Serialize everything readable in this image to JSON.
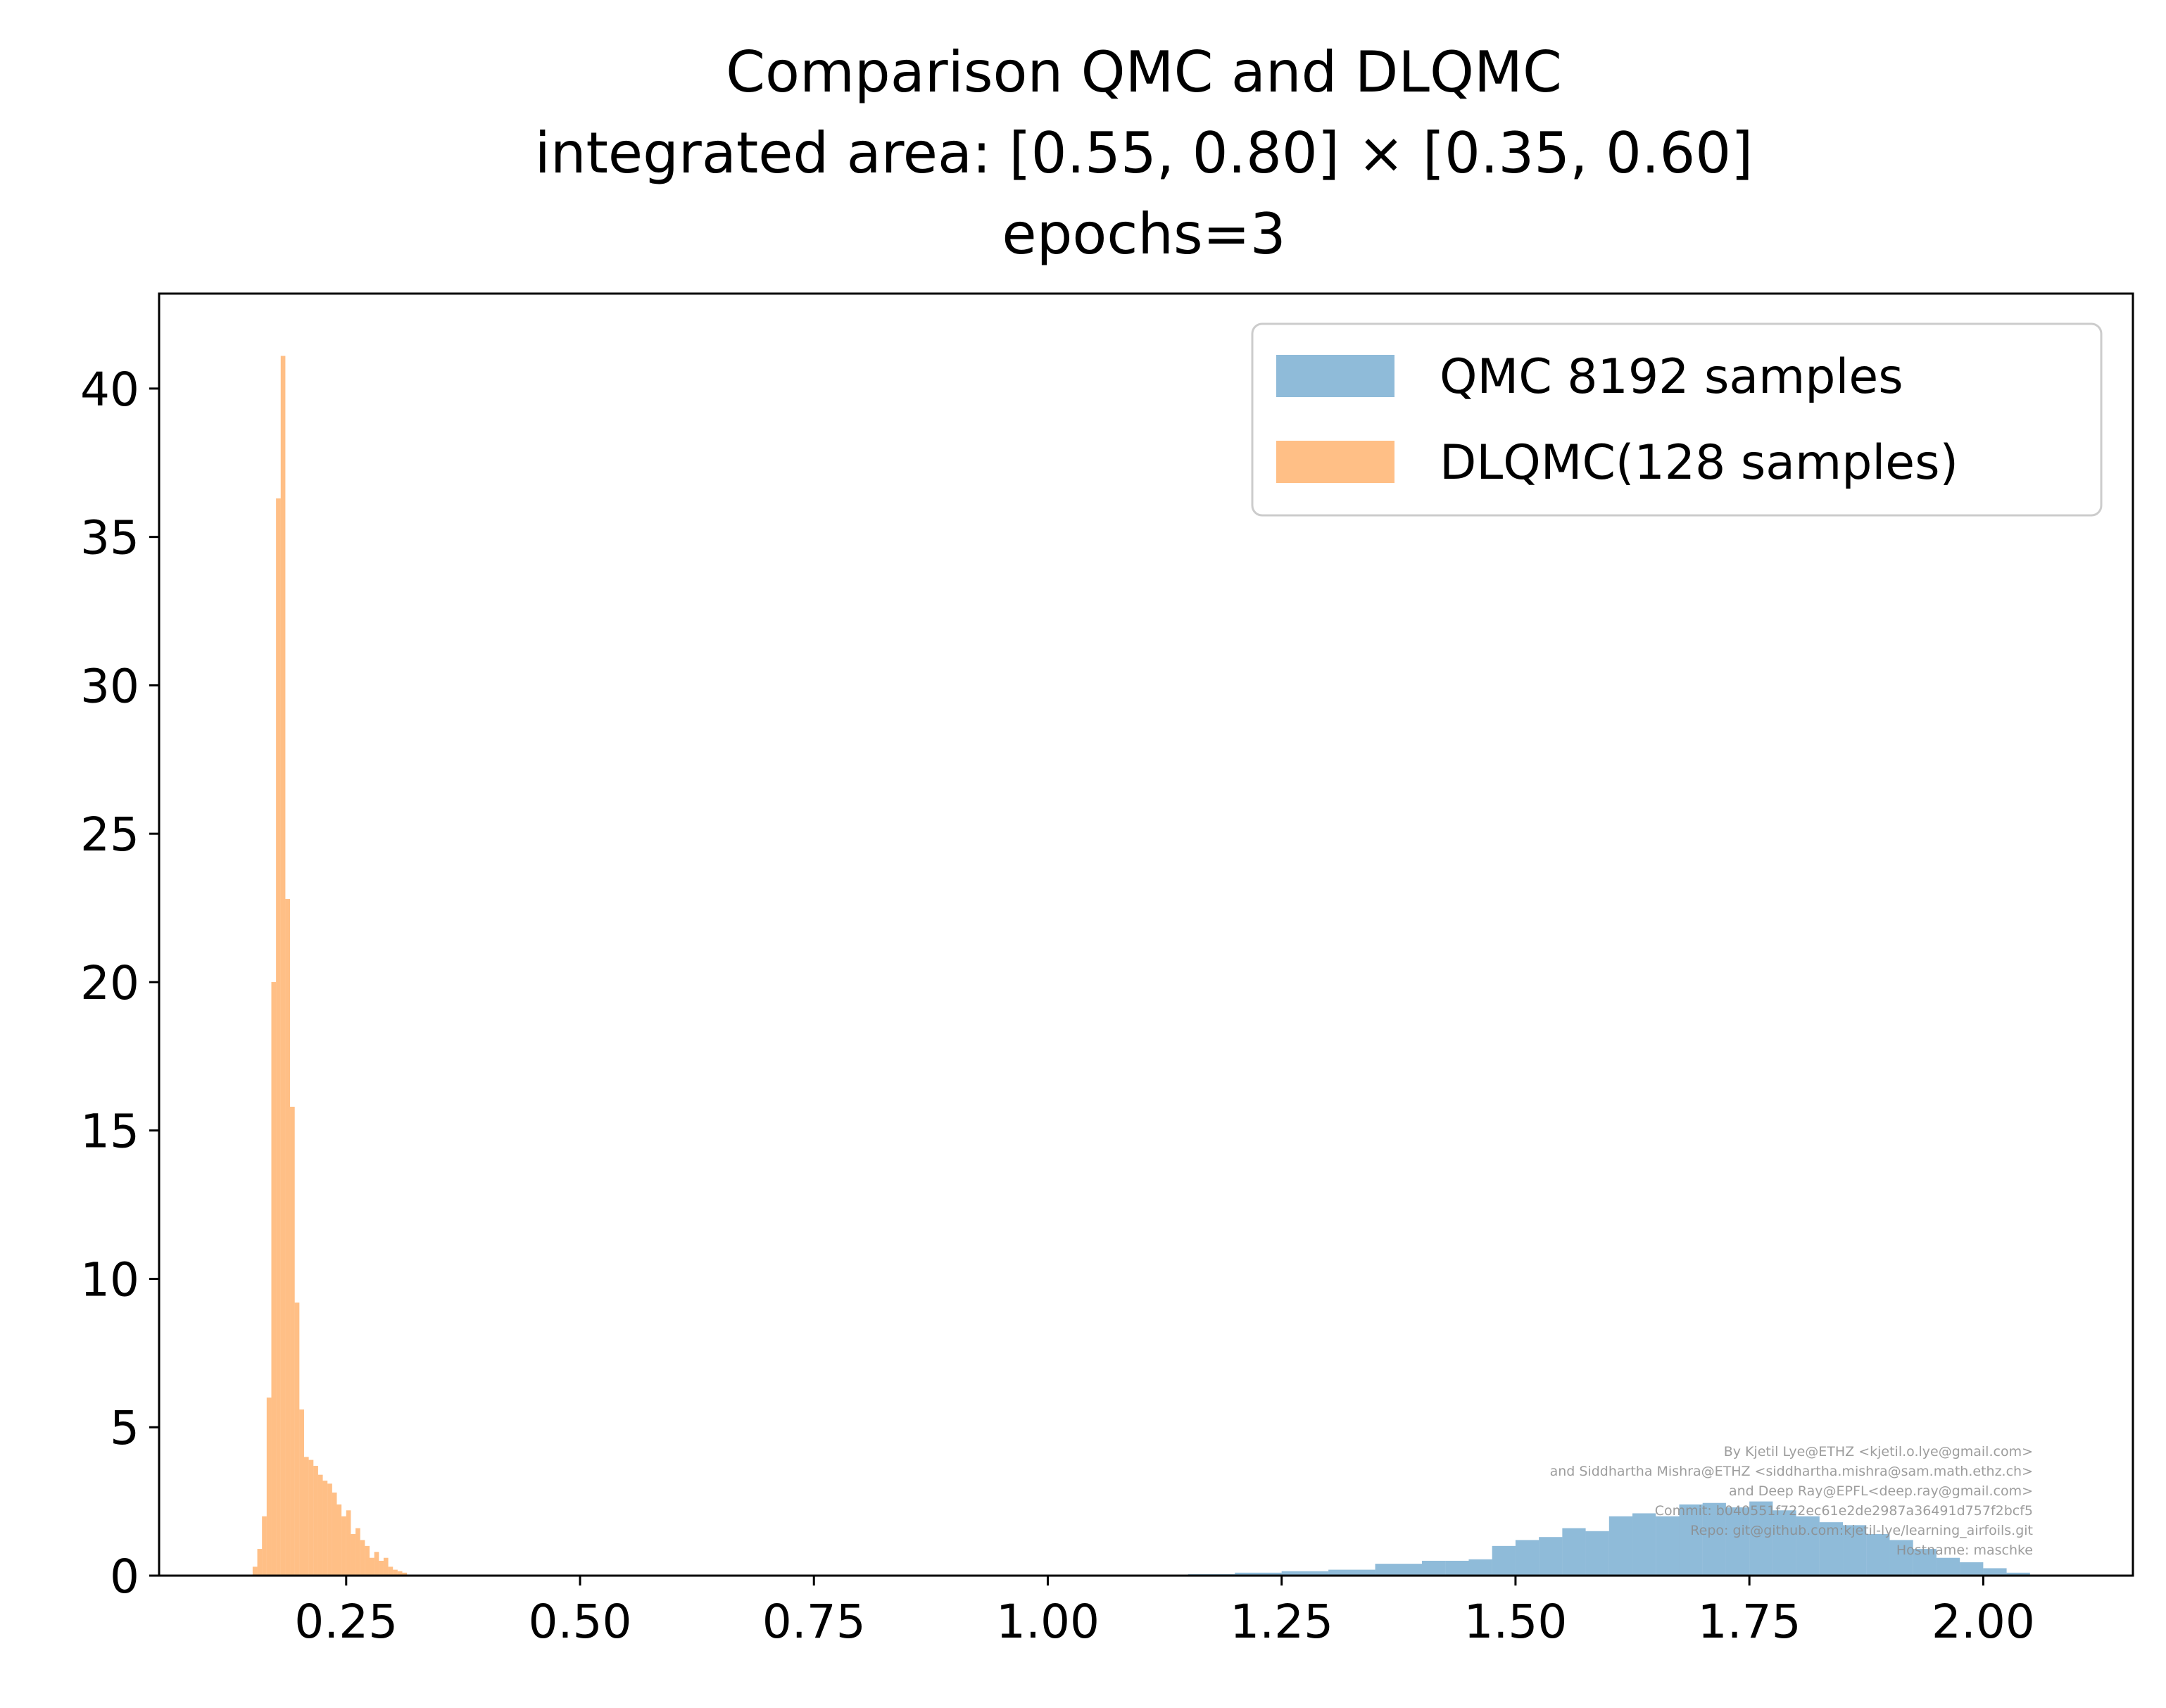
{
  "chart_data": {
    "type": "histogram",
    "title_lines": [
      "Comparison QMC and DLQMC",
      "integrated area: [0.55, 0.80] × [0.35, 0.60]",
      "epochs=3"
    ],
    "xlabel": "",
    "ylabel": "",
    "xlim": [
      0.05,
      2.16
    ],
    "ylim": [
      0,
      43.2
    ],
    "x_ticks": [
      {
        "value": 0.25,
        "label": "0.25"
      },
      {
        "value": 0.5,
        "label": "0.50"
      },
      {
        "value": 0.75,
        "label": "0.75"
      },
      {
        "value": 1.0,
        "label": "1.00"
      },
      {
        "value": 1.25,
        "label": "1.25"
      },
      {
        "value": 1.5,
        "label": "1.50"
      },
      {
        "value": 1.75,
        "label": "1.75"
      },
      {
        "value": 2.0,
        "label": "2.00"
      }
    ],
    "y_ticks": [
      {
        "value": 0,
        "label": "0"
      },
      {
        "value": 5,
        "label": "5"
      },
      {
        "value": 10,
        "label": "10"
      },
      {
        "value": 15,
        "label": "15"
      },
      {
        "value": 20,
        "label": "20"
      },
      {
        "value": 25,
        "label": "25"
      },
      {
        "value": 30,
        "label": "30"
      },
      {
        "value": 35,
        "label": "35"
      },
      {
        "value": 40,
        "label": "40"
      }
    ],
    "grid": false,
    "legend_position": "top-right",
    "series": [
      {
        "name": "QMC 8192 samples",
        "color": "#1f77b4",
        "opacity": 0.5,
        "bins": [
          {
            "x0": 1.15,
            "x1": 1.2,
            "value": 0.05
          },
          {
            "x0": 1.2,
            "x1": 1.25,
            "value": 0.1
          },
          {
            "x0": 1.25,
            "x1": 1.3,
            "value": 0.15
          },
          {
            "x0": 1.3,
            "x1": 1.35,
            "value": 0.2
          },
          {
            "x0": 1.35,
            "x1": 1.4,
            "value": 0.4
          },
          {
            "x0": 1.4,
            "x1": 1.425,
            "value": 0.5
          },
          {
            "x0": 1.425,
            "x1": 1.45,
            "value": 0.5
          },
          {
            "x0": 1.45,
            "x1": 1.475,
            "value": 0.55
          },
          {
            "x0": 1.475,
            "x1": 1.5,
            "value": 1.0
          },
          {
            "x0": 1.5,
            "x1": 1.525,
            "value": 1.2
          },
          {
            "x0": 1.525,
            "x1": 1.55,
            "value": 1.3
          },
          {
            "x0": 1.55,
            "x1": 1.575,
            "value": 1.6
          },
          {
            "x0": 1.575,
            "x1": 1.6,
            "value": 1.5
          },
          {
            "x0": 1.6,
            "x1": 1.625,
            "value": 2.0
          },
          {
            "x0": 1.625,
            "x1": 1.65,
            "value": 2.1
          },
          {
            "x0": 1.65,
            "x1": 1.675,
            "value": 2.0
          },
          {
            "x0": 1.675,
            "x1": 1.7,
            "value": 2.4
          },
          {
            "x0": 1.7,
            "x1": 1.725,
            "value": 2.45
          },
          {
            "x0": 1.725,
            "x1": 1.75,
            "value": 2.3
          },
          {
            "x0": 1.75,
            "x1": 1.775,
            "value": 2.5
          },
          {
            "x0": 1.775,
            "x1": 1.8,
            "value": 2.2
          },
          {
            "x0": 1.8,
            "x1": 1.825,
            "value": 2.0
          },
          {
            "x0": 1.825,
            "x1": 1.85,
            "value": 1.8
          },
          {
            "x0": 1.85,
            "x1": 1.875,
            "value": 1.7
          },
          {
            "x0": 1.875,
            "x1": 1.9,
            "value": 1.4
          },
          {
            "x0": 1.9,
            "x1": 1.925,
            "value": 1.2
          },
          {
            "x0": 1.925,
            "x1": 1.95,
            "value": 0.9
          },
          {
            "x0": 1.95,
            "x1": 1.975,
            "value": 0.6
          },
          {
            "x0": 1.975,
            "x1": 2.0,
            "value": 0.45
          },
          {
            "x0": 2.0,
            "x1": 2.025,
            "value": 0.25
          },
          {
            "x0": 2.025,
            "x1": 2.05,
            "value": 0.1
          }
        ]
      },
      {
        "name": "DLQMC(128 samples)",
        "color": "#ff7f0e",
        "opacity": 0.5,
        "bins": [
          {
            "x0": 0.15,
            "x1": 0.155,
            "value": 0.3
          },
          {
            "x0": 0.155,
            "x1": 0.16,
            "value": 0.9
          },
          {
            "x0": 0.16,
            "x1": 0.165,
            "value": 2.0
          },
          {
            "x0": 0.165,
            "x1": 0.17,
            "value": 6.0
          },
          {
            "x0": 0.17,
            "x1": 0.175,
            "value": 20.0
          },
          {
            "x0": 0.175,
            "x1": 0.18,
            "value": 36.3
          },
          {
            "x0": 0.18,
            "x1": 0.185,
            "value": 41.1
          },
          {
            "x0": 0.185,
            "x1": 0.19,
            "value": 22.8
          },
          {
            "x0": 0.19,
            "x1": 0.195,
            "value": 15.8
          },
          {
            "x0": 0.195,
            "x1": 0.2,
            "value": 9.2
          },
          {
            "x0": 0.2,
            "x1": 0.205,
            "value": 5.6
          },
          {
            "x0": 0.205,
            "x1": 0.21,
            "value": 4.0
          },
          {
            "x0": 0.21,
            "x1": 0.215,
            "value": 3.9
          },
          {
            "x0": 0.215,
            "x1": 0.22,
            "value": 3.7
          },
          {
            "x0": 0.22,
            "x1": 0.225,
            "value": 3.4
          },
          {
            "x0": 0.225,
            "x1": 0.23,
            "value": 3.2
          },
          {
            "x0": 0.23,
            "x1": 0.235,
            "value": 3.1
          },
          {
            "x0": 0.235,
            "x1": 0.24,
            "value": 2.8
          },
          {
            "x0": 0.24,
            "x1": 0.245,
            "value": 2.4
          },
          {
            "x0": 0.245,
            "x1": 0.25,
            "value": 2.0
          },
          {
            "x0": 0.25,
            "x1": 0.255,
            "value": 2.2
          },
          {
            "x0": 0.255,
            "x1": 0.26,
            "value": 1.4
          },
          {
            "x0": 0.26,
            "x1": 0.265,
            "value": 1.6
          },
          {
            "x0": 0.265,
            "x1": 0.27,
            "value": 1.2
          },
          {
            "x0": 0.27,
            "x1": 0.275,
            "value": 1.0
          },
          {
            "x0": 0.275,
            "x1": 0.28,
            "value": 0.6
          },
          {
            "x0": 0.28,
            "x1": 0.285,
            "value": 0.8
          },
          {
            "x0": 0.285,
            "x1": 0.29,
            "value": 0.5
          },
          {
            "x0": 0.29,
            "x1": 0.295,
            "value": 0.6
          },
          {
            "x0": 0.295,
            "x1": 0.3,
            "value": 0.3
          },
          {
            "x0": 0.3,
            "x1": 0.305,
            "value": 0.2
          },
          {
            "x0": 0.305,
            "x1": 0.31,
            "value": 0.15
          },
          {
            "x0": 0.31,
            "x1": 0.315,
            "value": 0.1
          }
        ]
      }
    ],
    "watermark_lines": [
      "By Kjetil Lye@ETHZ <kjetil.o.lye@gmail.com>",
      "and Siddhartha Mishra@ETHZ <siddhartha.mishra@sam.math.ethz.ch>",
      "and Deep Ray@EPFL<deep.ray@gmail.com>",
      "Commit: b040551f722ec61e2de2987a36491d757f2bcf5",
      "Repo: git@github.com:kjetil-lye/learning_airfoils.git",
      "Hostname: maschke"
    ]
  }
}
